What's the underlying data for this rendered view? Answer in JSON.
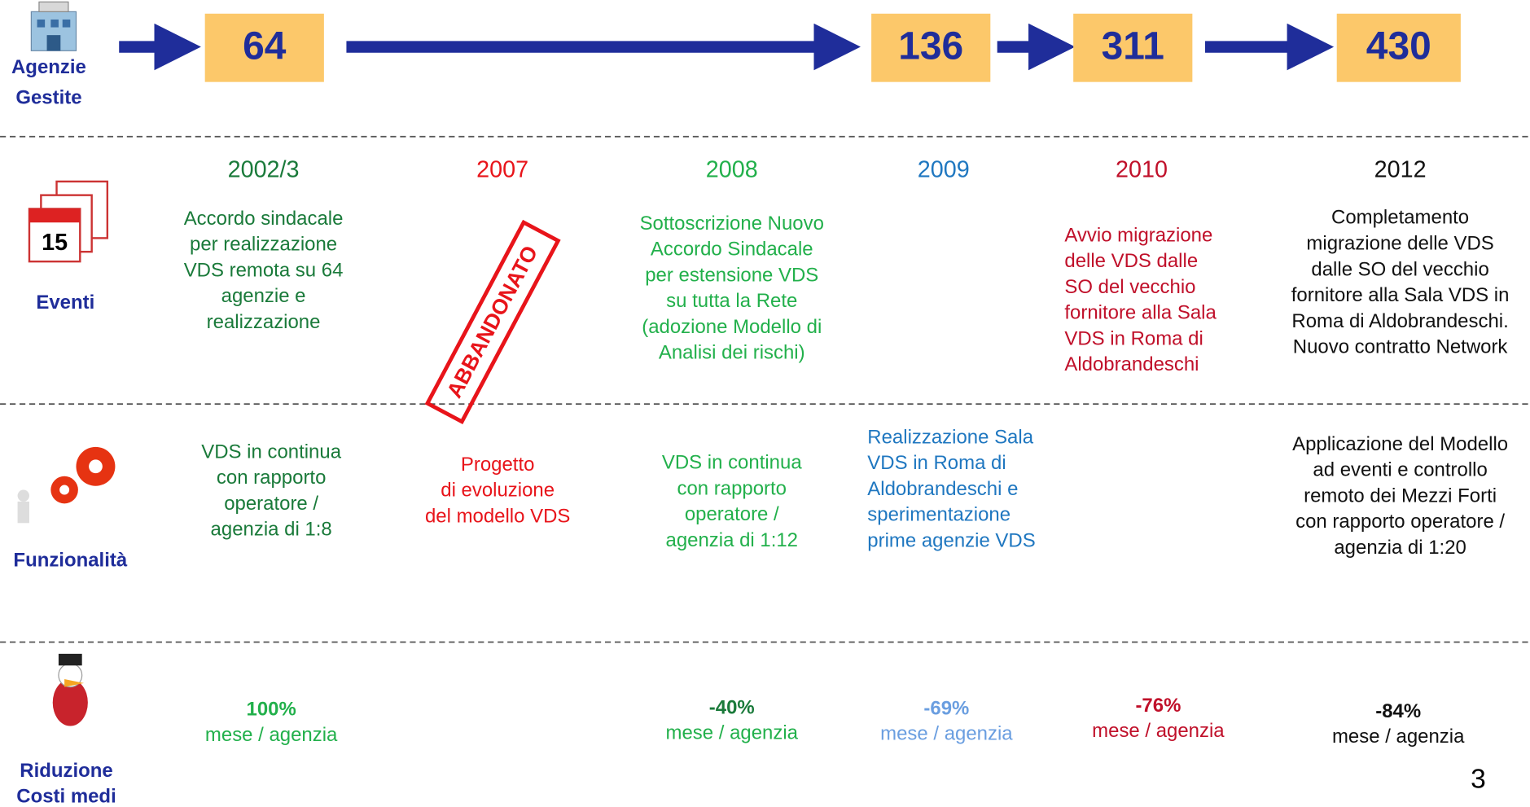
{
  "agenzie": {
    "label": [
      "Agenzie",
      "Gestite"
    ],
    "counts": [
      64,
      136,
      311,
      430
    ]
  },
  "eventi": {
    "label": "Eventi",
    "columns": [
      {
        "year": "2002/3",
        "lines": [
          "Accordo sindacale",
          "per realizzazione",
          "VDS remota su 64",
          "agenzie e",
          "realizzazione"
        ]
      },
      {
        "year": "2007",
        "lines": []
      },
      {
        "year": "2008",
        "lines": [
          "Sottoscrizione Nuovo",
          "Accordo Sindacale",
          "per estensione VDS",
          "su tutta la Rete",
          "(adozione Modello di",
          "Analisi dei rischi)"
        ]
      },
      {
        "year": "2009",
        "lines": []
      },
      {
        "year": "2010",
        "lines": [
          "Avvio migrazione",
          "delle VDS dalle",
          "SO del vecchio",
          "fornitore alla Sala",
          "VDS in Roma di",
          "Aldobrandeschi"
        ]
      },
      {
        "year": "2012",
        "lines": [
          "Completamento",
          "migrazione delle VDS",
          "dalle SO del vecchio",
          "fornitore alla Sala VDS in",
          "Roma di Aldobrandeschi.",
          "Nuovo contratto Network"
        ]
      }
    ]
  },
  "funzionalita": {
    "label": "Funzionalità",
    "columns": [
      [
        "VDS in continua",
        "con rapporto",
        "operatore /",
        "agenzia di 1:8"
      ],
      [
        "Progetto",
        "di evoluzione",
        "del modello VDS"
      ],
      [
        "VDS in continua",
        "con rapporto",
        "operatore /",
        "agenzia di 1:12"
      ],
      [
        "Realizzazione Sala",
        "VDS in Roma di",
        "Aldobrandeschi e",
        "sperimentazione",
        "prime agenzie VDS"
      ],
      [
        "Applicazione del Modello",
        "ad eventi e controllo",
        "remoto dei Mezzi Forti",
        "con rapporto operatore /",
        "agenzia di 1:20"
      ]
    ]
  },
  "riduzione": {
    "label": [
      "Riduzione",
      "Costi medi"
    ],
    "columns": [
      {
        "value": "100%",
        "unit": "mese / agenzia"
      },
      {
        "value": "-40%",
        "unit": "mese / agenzia"
      },
      {
        "value": "-69%",
        "unit": "mese / agenzia"
      },
      {
        "value": "-76%",
        "unit": "mese / agenzia"
      },
      {
        "value": "-84%",
        "unit": "mese / agenzia"
      }
    ]
  },
  "stamp": "ABBANDONATO",
  "page_number": "3"
}
